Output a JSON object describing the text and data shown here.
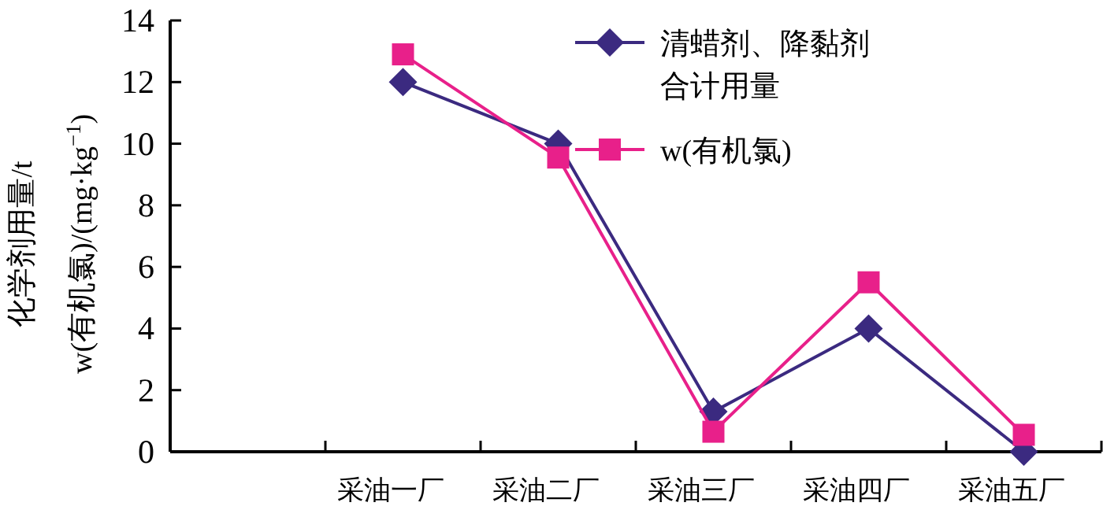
{
  "chart_data": {
    "type": "line",
    "ylabel": "化学剂用量/t\nw(有机氯)/(mg·kg$^{−1}$)",
    "categories": [
      null,
      "采油一厂",
      "采油二厂",
      "采油三厂",
      "采油四厂",
      "采油五厂"
    ],
    "series": [
      {
        "name": "清蜡剂、降黏剂合计用量",
        "color": "#3b2a80",
        "marker": "diamond",
        "values": [
          null,
          12.0,
          10.0,
          1.3,
          4.0,
          0.0
        ]
      },
      {
        "name": "w(有机氯)",
        "color": "#e8208a",
        "marker": "square",
        "values": [
          null,
          12.9,
          9.55,
          0.65,
          5.5,
          0.55
        ]
      }
    ],
    "ylim": [
      0,
      14
    ],
    "yticks": [
      0,
      2,
      4,
      6,
      8,
      10,
      12,
      14
    ],
    "legend": "top right",
    "grid": false,
    "line_style": "solid"
  }
}
